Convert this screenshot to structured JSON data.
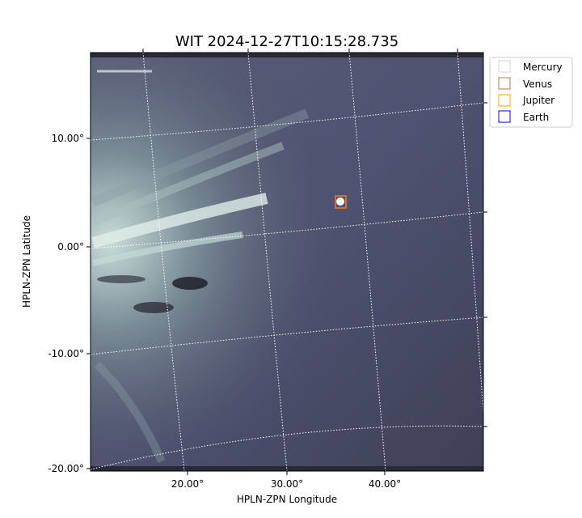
{
  "chart_data": {
    "type": "heatmap",
    "title": "WIT 2024-12-27T10:15:28.735",
    "xlabel": "HPLN-ZPN Longitude",
    "ylabel": "HPLN-ZPN Latitude",
    "x_ticks": [
      "20.00°",
      "30.00°",
      "40.00°"
    ],
    "y_ticks": [
      "10.00°",
      "0.00°",
      "-10.00°",
      "-20.00°"
    ],
    "grid": true,
    "colormap": "bone",
    "legend": {
      "placement": "outside-top-right",
      "entries": [
        {
          "name": "Mercury",
          "color": "#d3d3d3"
        },
        {
          "name": "Venus",
          "color": "#c87137"
        },
        {
          "name": "Jupiter",
          "color": "#ffa500"
        },
        {
          "name": "Earth",
          "color": "#0000ff"
        }
      ]
    },
    "markers": [
      {
        "name": "Venus",
        "lon": 35.5,
        "lat": 4.2
      }
    ]
  }
}
